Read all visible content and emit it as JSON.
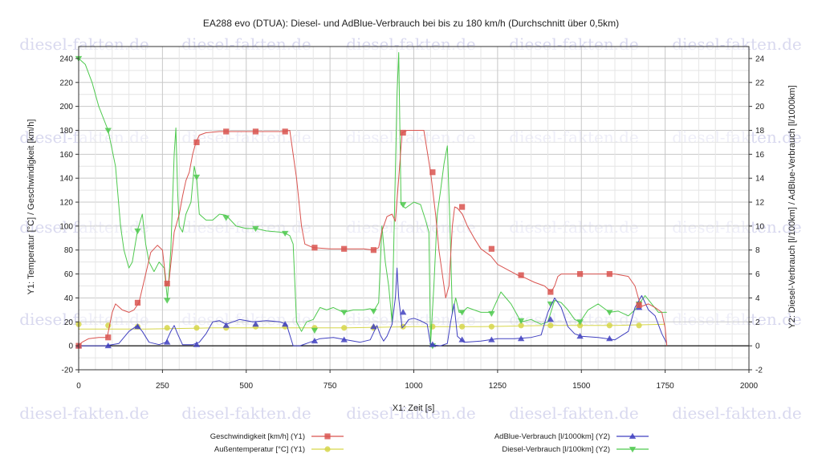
{
  "watermark": "diesel-fakten.de",
  "chart_data": {
    "type": "line",
    "title": "EA288 evo (DTUA): Diesel- und AdBlue-Verbrauch bei bis zu 180 km/h (Durchschnitt über 0,5km)",
    "xlabel": "X1: Zeit [s]",
    "ylabel": "Y1: Temperatur [°C] / Geschwindigkeit [km/h]",
    "y2label": "Y2: Diesel-Verbrauch [l/100km] / AdBlue-Verbrauch [l/1000km]",
    "xlim": [
      0,
      2000
    ],
    "ylim": [
      -20,
      250
    ],
    "y2lim": [
      -2,
      25
    ],
    "x_ticks": [
      0,
      250,
      500,
      750,
      1000,
      1250,
      1500,
      1750,
      2000
    ],
    "y_ticks": [
      -20,
      0,
      20,
      40,
      60,
      80,
      100,
      120,
      140,
      160,
      180,
      200,
      220,
      240
    ],
    "y2_ticks": [
      -2,
      0,
      2,
      4,
      6,
      8,
      10,
      12,
      14,
      16,
      18,
      20,
      22,
      24
    ],
    "grid": true,
    "legend_position": "bottom",
    "series": [
      {
        "name": "Geschwindigkeit [km/h] (Y1)",
        "axis": "y1",
        "color": "#d9534f",
        "marker": "square",
        "x": [
          0,
          10,
          30,
          60,
          85,
          100,
          110,
          130,
          150,
          165,
          180,
          200,
          215,
          235,
          250,
          262,
          270,
          285,
          300,
          310,
          320,
          330,
          340,
          350,
          360,
          380,
          420,
          460,
          500,
          540,
          580,
          615,
          630,
          650,
          665,
          675,
          700,
          750,
          800,
          850,
          880,
          895,
          905,
          920,
          935,
          945,
          955,
          965,
          980,
          1000,
          1030,
          1050,
          1065,
          1075,
          1085,
          1095,
          1105,
          1115,
          1122,
          1130,
          1145,
          1160,
          1180,
          1200,
          1230,
          1250,
          1270,
          1290,
          1310,
          1330,
          1360,
          1390,
          1410,
          1420,
          1430,
          1440,
          1450,
          1460,
          1480,
          1520,
          1560,
          1600,
          1640,
          1660,
          1670,
          1680,
          1700,
          1720,
          1740,
          1750,
          1755
        ],
        "values": [
          0,
          3,
          6,
          7,
          7,
          28,
          35,
          30,
          28,
          30,
          36,
          60,
          78,
          84,
          80,
          50,
          55,
          95,
          110,
          125,
          138,
          145,
          160,
          170,
          176,
          178,
          179,
          179,
          179,
          179,
          179,
          179,
          180,
          140,
          100,
          85,
          82,
          81,
          81,
          81,
          80,
          82,
          96,
          108,
          110,
          104,
          140,
          178,
          180,
          180,
          180,
          145,
          110,
          80,
          60,
          40,
          50,
          100,
          116,
          115,
          110,
          100,
          90,
          81,
          75,
          68,
          65,
          62,
          59,
          57,
          53,
          50,
          45,
          50,
          58,
          60,
          60,
          60,
          60,
          60,
          60,
          60,
          58,
          50,
          40,
          33,
          35,
          32,
          28,
          15,
          0
        ],
        "markers_x": [
          0,
          88,
          176,
          264,
          352,
          440,
          528,
          616,
          704,
          792,
          880,
          968,
          1056,
          1144,
          1232,
          1320,
          1408,
          1496,
          1584,
          1672
        ],
        "markers_y": [
          0,
          7,
          36,
          52,
          170,
          179,
          179,
          179,
          82,
          81,
          80,
          178,
          145,
          116,
          81,
          59,
          45,
          60,
          60,
          34
        ]
      },
      {
        "name": "Außentemperatur [°C] (Y1)",
        "axis": "y1",
        "color": "#d6d64a",
        "marker": "circle",
        "x": [
          0,
          200,
          400,
          600,
          800,
          1000,
          1200,
          1400,
          1600,
          1750
        ],
        "values": [
          14,
          14,
          15,
          15,
          15,
          16,
          16,
          17,
          17,
          18
        ],
        "markers_x": [
          0,
          88,
          176,
          264,
          352,
          440,
          528,
          616,
          704,
          792,
          880,
          968,
          1056,
          1144,
          1232,
          1320,
          1408,
          1496,
          1584,
          1672
        ],
        "markers_y": [
          18,
          17,
          16,
          15,
          15,
          15,
          16,
          16,
          15,
          15,
          15,
          16,
          16,
          16,
          16,
          17,
          17,
          17,
          17,
          17
        ]
      },
      {
        "name": "AdBlue-Verbrauch [l/1000km] (Y2)",
        "axis": "y2",
        "color": "#4040c0",
        "marker": "triangle-up",
        "x": [
          0,
          80,
          120,
          150,
          175,
          190,
          210,
          240,
          260,
          275,
          285,
          295,
          310,
          340,
          360,
          380,
          400,
          420,
          440,
          480,
          520,
          560,
          600,
          620,
          640,
          660,
          680,
          700,
          720,
          760,
          800,
          840,
          870,
          890,
          900,
          910,
          920,
          935,
          945,
          950,
          955,
          965,
          975,
          985,
          1000,
          1020,
          1040,
          1050,
          1080,
          1100,
          1110,
          1120,
          1130,
          1150,
          1200,
          1250,
          1300,
          1350,
          1380,
          1400,
          1420,
          1440,
          1460,
          1480,
          1500,
          1550,
          1600,
          1640,
          1660,
          1680,
          1700,
          1720,
          1740,
          1755
        ],
        "values_y2": [
          0,
          0,
          0.2,
          1.2,
          1.7,
          1.2,
          0.3,
          0.1,
          0.3,
          1.2,
          1.7,
          1.0,
          0.1,
          0.1,
          0.3,
          1.0,
          2.0,
          2.1,
          1.8,
          2.2,
          2.0,
          2.1,
          2.0,
          1.8,
          0,
          0,
          0.2,
          0.4,
          0.6,
          0.7,
          0.5,
          0.3,
          0.5,
          1.7,
          0.9,
          0.4,
          0.8,
          1.8,
          4.0,
          6.5,
          4.0,
          1.5,
          1.8,
          2.2,
          2.3,
          2.1,
          1.8,
          0.1,
          0,
          0.2,
          2.0,
          3.5,
          0.8,
          0.3,
          0.4,
          0.6,
          0.6,
          0.7,
          0.9,
          2.8,
          4.0,
          3.2,
          1.6,
          1.0,
          0.8,
          0.7,
          0.5,
          1.2,
          3.2,
          4.2,
          3.0,
          2.5,
          1.0,
          0.2
        ],
        "markers_x": [
          0,
          88,
          176,
          264,
          352,
          440,
          528,
          616,
          704,
          792,
          880,
          968,
          1056,
          1144,
          1232,
          1320,
          1408,
          1496,
          1584,
          1672
        ],
        "markers_y2": [
          0,
          0,
          1.6,
          0.3,
          0.1,
          1.7,
          1.8,
          1.8,
          0.4,
          0.5,
          1.6,
          2.8,
          0.1,
          0.5,
          0.5,
          0.6,
          2.2,
          0.8,
          0.6,
          3.2
        ]
      },
      {
        "name": "Diesel-Verbrauch [l/100km] (Y2)",
        "axis": "y2",
        "color": "#4ec94e",
        "marker": "triangle-down",
        "x": [
          0,
          20,
          40,
          60,
          88,
          110,
          125,
          135,
          150,
          160,
          176,
          190,
          200,
          210,
          225,
          240,
          255,
          265,
          275,
          285,
          290,
          295,
          300,
          310,
          320,
          335,
          345,
          352,
          360,
          380,
          400,
          420,
          440,
          470,
          500,
          528,
          560,
          600,
          616,
          630,
          640,
          650,
          665,
          680,
          700,
          720,
          740,
          760,
          790,
          820,
          850,
          870,
          880,
          895,
          905,
          915,
          925,
          935,
          940,
          950,
          955,
          962,
          975,
          990,
          1000,
          1020,
          1035,
          1045,
          1050,
          1060,
          1070,
          1080,
          1090,
          1100,
          1108,
          1115,
          1125,
          1135,
          1144,
          1160,
          1180,
          1200,
          1232,
          1260,
          1290,
          1320,
          1350,
          1380,
          1400,
          1420,
          1440,
          1460,
          1480,
          1496,
          1520,
          1550,
          1584,
          1610,
          1640,
          1660,
          1672,
          1690,
          1710,
          1730,
          1755
        ],
        "values_y2": [
          24,
          23.5,
          22,
          20,
          18,
          15,
          10,
          8,
          6.5,
          7,
          9.7,
          11,
          8.5,
          7,
          6.2,
          7,
          6.5,
          3.9,
          8,
          16,
          18.2,
          13,
          10,
          9.5,
          11,
          12,
          15,
          14,
          11,
          10.5,
          10.5,
          11,
          10.9,
          10,
          9.8,
          9.8,
          9.6,
          9.5,
          9.4,
          9.2,
          8.5,
          2,
          1.2,
          2.0,
          2.2,
          3.2,
          3.0,
          3.2,
          2.8,
          3.0,
          3.0,
          3.1,
          2.9,
          3.6,
          10,
          7,
          5,
          2,
          8,
          21,
          24.5,
          11.8,
          11.5,
          11.8,
          12,
          11.8,
          10.5,
          9.5,
          0.2,
          5,
          11,
          13,
          15.2,
          16.7,
          10,
          2.7,
          4,
          2.8,
          2.8,
          3.2,
          3.0,
          2.8,
          2.8,
          4.5,
          3.5,
          2.0,
          2.2,
          1.8,
          2.0,
          3.8,
          3.6,
          3.0,
          2.2,
          2.0,
          3.0,
          3.5,
          2.8,
          2.9,
          2.5,
          3.0,
          3.5,
          4.2,
          3.5,
          2.8,
          2.8
        ],
        "markers_x": [
          0,
          88,
          176,
          264,
          352,
          440,
          528,
          616,
          704,
          792,
          880,
          968,
          1056,
          1144,
          1232,
          1320,
          1408,
          1496,
          1584,
          1672
        ],
        "markers_y2": [
          24,
          18,
          9.6,
          3.8,
          14.1,
          10.7,
          9.8,
          9.4,
          1.3,
          2.8,
          2.9,
          11.8,
          0,
          2.8,
          2.7,
          2.1,
          3.5,
          2.0,
          2.8,
          3.5
        ]
      }
    ]
  }
}
